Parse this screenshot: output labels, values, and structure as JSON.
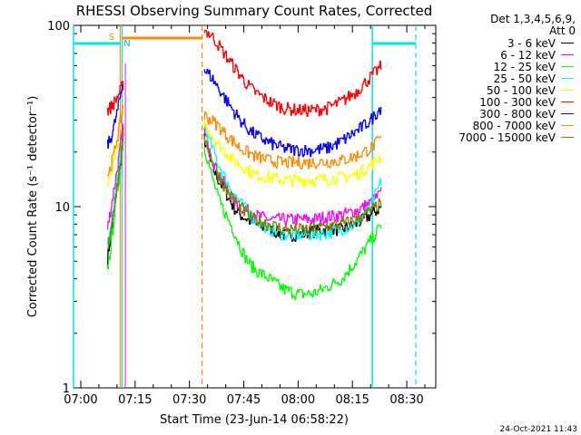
{
  "chart_data": {
    "type": "line",
    "title": "RHESSI Observing Summary Count Rates, Corrected",
    "xlabel": "Start Time (23-Jun-14 06:58:22)",
    "ylabel": "Corrected Count Rate (s⁻¹ detector⁻¹)",
    "y_scale": "log",
    "ylim": [
      1,
      100
    ],
    "xlim_minutes": [
      -2,
      98
    ],
    "y_tick_labels": [
      "1",
      "10",
      "100"
    ],
    "x_tick_labels": [
      "07:00",
      "07:15",
      "07:30",
      "07:45",
      "08:00",
      "08:15",
      "08:30"
    ],
    "x_tick_minutes": [
      0,
      15,
      30,
      45,
      60,
      75,
      90
    ],
    "detectors_line1": "Det 1,3,4,5,6,9,",
    "detectors_line2": "Att 0",
    "date_stamp": "24-Oct-2021 11:43",
    "flag_labels": [
      "S",
      "N"
    ],
    "series": [
      {
        "name": "3 - 6 keV",
        "color": "#000000",
        "x": [
          7.3,
          8,
          9,
          10,
          11,
          11.8,
          34,
          36,
          38,
          40,
          42,
          44,
          46,
          48,
          52,
          56,
          60,
          64,
          68,
          72,
          76,
          80,
          83
        ],
        "values": [
          5.0,
          6.5,
          9,
          13,
          18,
          25,
          24,
          17,
          14,
          12,
          10,
          9,
          8.5,
          8,
          7.5,
          7,
          7,
          7.3,
          7.5,
          7.5,
          8,
          9,
          10
        ]
      },
      {
        "name": "6 - 12 keV",
        "color": "#ff00ff",
        "x": [
          7.3,
          8,
          9,
          10,
          11,
          11.8,
          34,
          36,
          38,
          40,
          42,
          44,
          46,
          48,
          52,
          56,
          60,
          64,
          68,
          72,
          76,
          80,
          83
        ],
        "values": [
          7.5,
          9,
          12,
          16,
          22,
          30,
          26,
          19,
          15,
          13,
          11,
          10,
          9.5,
          9,
          8.5,
          8.5,
          8.5,
          8.5,
          8.8,
          9,
          9.5,
          10.5,
          12
        ]
      },
      {
        "name": "12 - 25 keV",
        "color": "#00ff00",
        "x": [
          7.3,
          8,
          9,
          10,
          11,
          11.8,
          34,
          36,
          38,
          40,
          42,
          44,
          46,
          48,
          52,
          56,
          60,
          64,
          68,
          72,
          76,
          80,
          83
        ],
        "values": [
          4.5,
          5.5,
          8,
          12,
          17,
          24,
          22,
          15,
          11,
          9,
          7.5,
          6,
          5,
          4.5,
          4,
          3.5,
          3.3,
          3.3,
          3.6,
          4,
          5,
          6.5,
          8
        ]
      },
      {
        "name": "25 - 50 keV",
        "color": "#00ffff",
        "x": [
          7.3,
          8,
          9,
          10,
          11,
          11.8,
          34,
          36,
          38,
          40,
          42,
          44,
          46,
          48,
          52,
          56,
          60,
          64,
          68,
          72,
          76,
          80,
          83
        ],
        "values": [
          6.2,
          7,
          10,
          14,
          19,
          27,
          28,
          22,
          17,
          14,
          12,
          10.5,
          9.5,
          8.5,
          7.5,
          7,
          7,
          7,
          7.2,
          7.5,
          8,
          10,
          14
        ]
      },
      {
        "name": "50 - 100 keV",
        "color": "#ffff00",
        "x": [
          7.3,
          8,
          9,
          10,
          11,
          11.8,
          34,
          36,
          38,
          40,
          42,
          44,
          46,
          48,
          52,
          56,
          60,
          64,
          68,
          72,
          76,
          80,
          83
        ],
        "values": [
          13,
          14,
          18,
          22,
          28,
          35,
          29,
          25,
          22,
          20,
          18,
          17,
          16,
          15,
          14.5,
          14,
          14,
          14,
          14.2,
          14.5,
          15,
          17,
          19
        ]
      },
      {
        "name": "100 - 300 keV",
        "color": "#ff0000",
        "x": [
          7.3,
          8,
          9,
          10,
          11,
          11.8,
          34,
          36,
          38,
          40,
          42,
          44,
          46,
          48,
          52,
          56,
          60,
          64,
          68,
          72,
          76,
          80,
          83
        ],
        "values": [
          34,
          35,
          37,
          40,
          44,
          48,
          95,
          88,
          78,
          68,
          60,
          53,
          47,
          43,
          38,
          35,
          34,
          34,
          35,
          38,
          43,
          52,
          60
        ]
      },
      {
        "name": "300 - 800 keV",
        "color": "#0000ff",
        "x": [
          7.3,
          8,
          9,
          10,
          11,
          11.8,
          34,
          36,
          38,
          40,
          42,
          44,
          46,
          48,
          52,
          56,
          60,
          64,
          68,
          72,
          76,
          80,
          83
        ],
        "values": [
          22,
          23,
          27,
          33,
          42,
          52,
          57,
          52,
          45,
          39,
          34,
          30,
          27,
          25,
          22.5,
          21,
          20.5,
          20.5,
          21,
          23,
          26,
          30,
          36
        ]
      },
      {
        "name": "800 - 7000 keV",
        "color": "#ff8c00",
        "x": [
          7.3,
          8,
          9,
          10,
          11,
          11.8,
          34,
          36,
          38,
          40,
          42,
          44,
          46,
          48,
          52,
          56,
          60,
          64,
          68,
          72,
          76,
          80,
          83
        ],
        "values": [
          15,
          16,
          19,
          24,
          30,
          38,
          32,
          30,
          28,
          25,
          23,
          21,
          20,
          19,
          18,
          17.5,
          17.5,
          17.5,
          17.7,
          18,
          19,
          21,
          24
        ]
      },
      {
        "name": "7000 - 15000 keV",
        "color": "#808000",
        "x": [
          7.3,
          8,
          9,
          10,
          11,
          11.8,
          34,
          36,
          38,
          40,
          42,
          44,
          46,
          48,
          52,
          56,
          60,
          64,
          68,
          72,
          76,
          80,
          83
        ],
        "values": [
          5.5,
          7,
          9.5,
          13,
          18,
          26,
          25,
          19,
          15,
          12.5,
          11,
          10,
          9,
          8.5,
          8,
          7.5,
          7.5,
          7.5,
          7.8,
          8,
          8.5,
          9.5,
          10.5
        ]
      }
    ]
  }
}
